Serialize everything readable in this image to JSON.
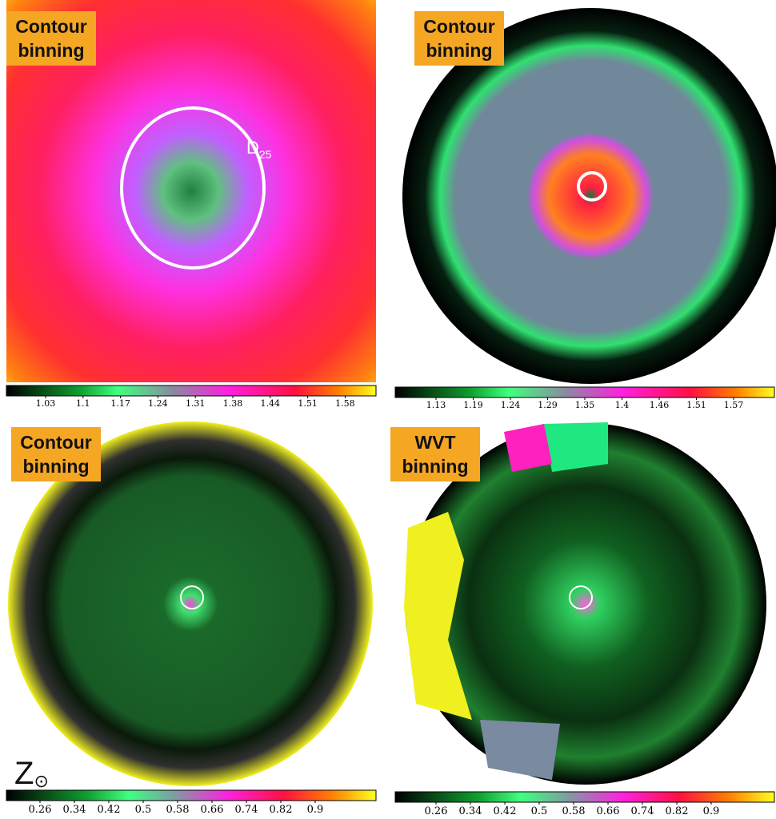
{
  "panels": [
    {
      "label": "Contour binning",
      "colorbar_ticks": [
        1.03,
        1.1,
        1.17,
        1.24,
        1.31,
        1.38,
        1.44,
        1.51,
        1.58
      ],
      "annotation": {
        "main": "D",
        "sub": "25"
      }
    },
    {
      "label": "Contour binning",
      "colorbar_ticks": [
        1.13,
        1.19,
        1.24,
        1.29,
        1.35,
        1.4,
        1.46,
        1.51,
        1.57
      ]
    },
    {
      "label": "Contour binning",
      "colorbar_ticks": [
        0.26,
        0.34,
        0.42,
        0.5,
        0.58,
        0.66,
        0.74,
        0.82,
        0.9
      ],
      "annotation": {
        "main": "Z",
        "sub": "⊙"
      }
    },
    {
      "label": "WVT binning",
      "colorbar_ticks": [
        0.26,
        0.34,
        0.42,
        0.5,
        0.58,
        0.66,
        0.74,
        0.82,
        0.9
      ]
    }
  ]
}
